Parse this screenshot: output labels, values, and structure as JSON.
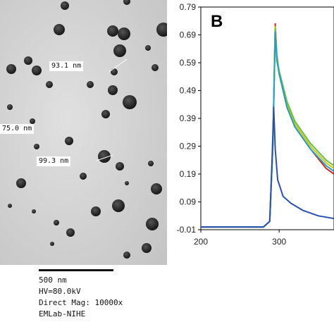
{
  "tem": {
    "measurements": [
      {
        "label": "93.1 nm"
      },
      {
        "label": "75.0 nm"
      },
      {
        "label": "99.3 nm"
      }
    ],
    "scale_label": "500 nm",
    "info": [
      "HV=80.0kV",
      "Direct Mag: 10000x",
      "EMLab-NIHE"
    ]
  },
  "chart_data": {
    "type": "line",
    "panel_label": "B",
    "title": "",
    "xlabel": "",
    "ylabel": "",
    "xlim": [
      200,
      370
    ],
    "ylim": [
      -0.01,
      0.79
    ],
    "x_ticks": [
      200,
      300
    ],
    "y_ticks": [
      0.79,
      0.69,
      0.59,
      0.49,
      0.39,
      0.29,
      0.19,
      0.09,
      -0.01
    ],
    "grid": false,
    "series": [
      {
        "color": "#d62728",
        "x": [
          200,
          280,
          288,
          292,
          295,
          297,
          300,
          310,
          320,
          340,
          360,
          370
        ],
        "y": [
          0.0,
          0.0,
          0.02,
          0.3,
          0.73,
          0.62,
          0.55,
          0.43,
          0.36,
          0.28,
          0.21,
          0.19
        ]
      },
      {
        "color": "#c8c814",
        "x": [
          200,
          280,
          288,
          292,
          295,
          297,
          300,
          310,
          320,
          340,
          360,
          370
        ],
        "y": [
          0.0,
          0.0,
          0.02,
          0.3,
          0.72,
          0.61,
          0.55,
          0.44,
          0.37,
          0.29,
          0.23,
          0.21
        ]
      },
      {
        "color": "#6abf40",
        "x": [
          200,
          280,
          288,
          292,
          295,
          297,
          300,
          310,
          320,
          340,
          360,
          370
        ],
        "y": [
          0.0,
          0.0,
          0.02,
          0.3,
          0.71,
          0.61,
          0.56,
          0.45,
          0.38,
          0.3,
          0.24,
          0.22
        ]
      },
      {
        "color": "#1fa3c4",
        "x": [
          200,
          280,
          288,
          292,
          295,
          297,
          300,
          310,
          320,
          340,
          360,
          370
        ],
        "y": [
          0.0,
          0.0,
          0.02,
          0.3,
          0.7,
          0.6,
          0.55,
          0.43,
          0.36,
          0.28,
          0.22,
          0.2
        ]
      },
      {
        "color": "#2b50b4",
        "x": [
          200,
          280,
          288,
          291,
          293,
          295,
          298,
          305,
          315,
          330,
          350,
          370
        ],
        "y": [
          0.0,
          0.0,
          0.02,
          0.25,
          0.43,
          0.28,
          0.17,
          0.11,
          0.085,
          0.06,
          0.04,
          0.03
        ]
      }
    ]
  }
}
